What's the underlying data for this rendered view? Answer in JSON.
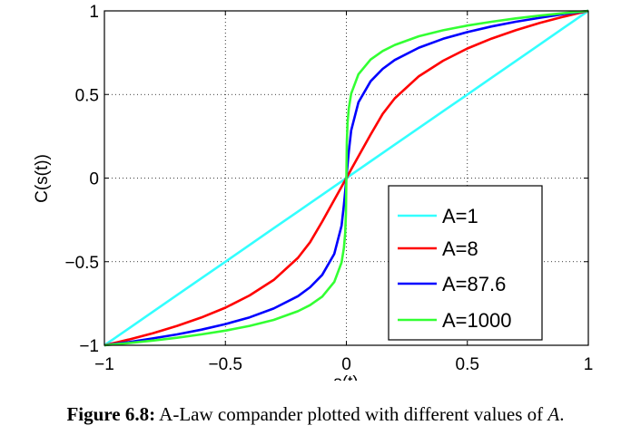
{
  "chart_data": {
    "type": "line",
    "xlabel": "s(t)",
    "ylabel": "C(s(t))",
    "xlim": [
      -1,
      1
    ],
    "ylim": [
      -1,
      1
    ],
    "grid": true,
    "legend_position": "bottom-right",
    "xticks": [
      "−1",
      "−0.5",
      "0",
      "0.5",
      "1"
    ],
    "yticks": [
      "−1",
      "−0.5",
      "0",
      "0.5",
      "1"
    ],
    "x": [
      -1,
      -0.9,
      -0.8,
      -0.7,
      -0.6,
      -0.5,
      -0.4,
      -0.3,
      -0.2,
      -0.15,
      -0.1,
      -0.05,
      -0.02,
      -0.01,
      -0.005,
      -0.002,
      -0.001,
      0,
      0.001,
      0.002,
      0.005,
      0.01,
      0.02,
      0.05,
      0.1,
      0.15,
      0.2,
      0.3,
      0.4,
      0.5,
      0.6,
      0.7,
      0.8,
      0.9,
      1
    ],
    "series": [
      {
        "name": "A=1",
        "color": "#33ffff",
        "values": [
          -1,
          -0.9,
          -0.8,
          -0.7,
          -0.6,
          -0.5,
          -0.4,
          -0.3,
          -0.2,
          -0.15,
          -0.1,
          -0.05,
          -0.02,
          -0.01,
          -0.005,
          -0.002,
          -0.001,
          0,
          0.001,
          0.002,
          0.005,
          0.01,
          0.02,
          0.05,
          0.1,
          0.15,
          0.2,
          0.3,
          0.4,
          0.5,
          0.6,
          0.7,
          0.8,
          0.9,
          1
        ]
      },
      {
        "name": "A=8",
        "color": "#ff0000",
        "values": [
          -1,
          -0.966,
          -0.928,
          -0.884,
          -0.834,
          -0.775,
          -0.702,
          -0.609,
          -0.477,
          -0.384,
          -0.26,
          -0.13,
          -0.052,
          -0.026,
          -0.013,
          -0.005,
          -0.003,
          0,
          0.003,
          0.005,
          0.013,
          0.026,
          0.052,
          0.13,
          0.26,
          0.384,
          0.477,
          0.609,
          0.702,
          0.775,
          0.834,
          0.884,
          0.928,
          0.966,
          1
        ]
      },
      {
        "name": "A=87.6",
        "color": "#0000ff",
        "values": [
          -1,
          -0.981,
          -0.959,
          -0.935,
          -0.907,
          -0.873,
          -0.833,
          -0.78,
          -0.706,
          -0.653,
          -0.579,
          -0.453,
          -0.285,
          -0.16,
          -0.08,
          -0.032,
          -0.016,
          0,
          0.016,
          0.032,
          0.08,
          0.16,
          0.285,
          0.453,
          0.579,
          0.653,
          0.706,
          0.78,
          0.833,
          0.873,
          0.907,
          0.935,
          0.959,
          0.981,
          1
        ]
      },
      {
        "name": "A=1000",
        "color": "#33ff33",
        "values": [
          -1,
          -0.987,
          -0.972,
          -0.955,
          -0.935,
          -0.912,
          -0.884,
          -0.848,
          -0.796,
          -0.76,
          -0.709,
          -0.621,
          -0.505,
          -0.418,
          -0.33,
          -0.214,
          -0.126,
          0,
          0.126,
          0.214,
          0.33,
          0.418,
          0.505,
          0.621,
          0.709,
          0.76,
          0.796,
          0.848,
          0.884,
          0.912,
          0.935,
          0.955,
          0.972,
          0.987,
          1
        ]
      }
    ]
  },
  "caption": {
    "label": "Figure 6.8:",
    "text": " A-Law compander plotted with different values of ",
    "var": "A",
    "end": "."
  }
}
